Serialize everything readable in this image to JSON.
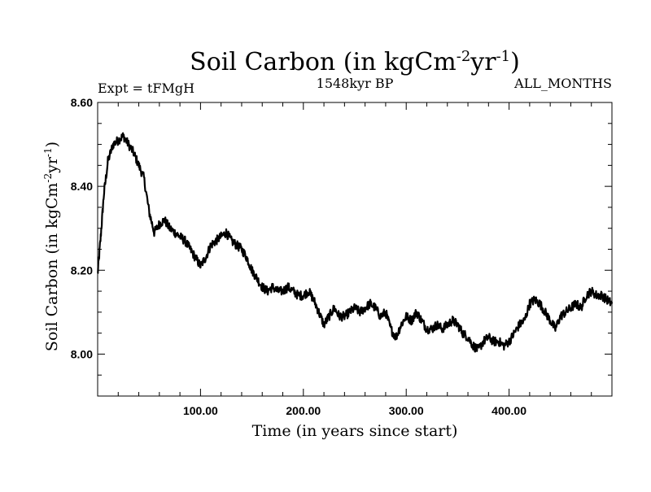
{
  "chart_data": {
    "type": "line",
    "title": {
      "base": "Soil Carbon (in kgCm",
      "sup1": "-2",
      "mid": "yr",
      "sup2": "-1",
      "end": ")"
    },
    "left_label": "Expt = tFMgH",
    "center_label": "1548kyr BP",
    "right_label": "ALL_MONTHS",
    "xlabel": "Time (in years since start)",
    "ylabel": {
      "base": "Soil Carbon (in kgCm",
      "sup1": "-2",
      "mid": "yr",
      "sup2": "-1",
      "end": ")"
    },
    "xlim": [
      0,
      500
    ],
    "ylim": [
      7.9,
      8.6
    ],
    "x_ticks": [
      100,
      200,
      300,
      400
    ],
    "x_tick_labels": [
      "100.00",
      "200.00",
      "300.00",
      "400.00"
    ],
    "y_ticks": [
      8.0,
      8.2,
      8.4,
      8.6
    ],
    "y_tick_labels": [
      "8.00",
      "8.20",
      "8.40",
      "8.60"
    ],
    "series": [
      {
        "name": "Soil Carbon",
        "color": "#000000",
        "x": [
          0,
          3,
          6,
          10,
          15,
          20,
          25,
          30,
          35,
          40,
          45,
          50,
          55,
          60,
          65,
          70,
          75,
          80,
          85,
          90,
          95,
          100,
          105,
          110,
          115,
          120,
          125,
          130,
          135,
          140,
          145,
          150,
          155,
          160,
          165,
          170,
          175,
          180,
          185,
          190,
          195,
          200,
          205,
          210,
          215,
          220,
          225,
          230,
          235,
          240,
          245,
          250,
          255,
          260,
          265,
          270,
          275,
          280,
          285,
          290,
          295,
          300,
          305,
          310,
          315,
          320,
          325,
          330,
          335,
          340,
          345,
          350,
          355,
          360,
          365,
          370,
          375,
          380,
          385,
          390,
          395,
          400,
          405,
          410,
          415,
          420,
          425,
          430,
          435,
          440,
          445,
          450,
          455,
          460,
          465,
          470,
          475,
          480,
          485,
          490,
          495,
          500
        ],
        "values": [
          8.19,
          8.28,
          8.38,
          8.46,
          8.5,
          8.51,
          8.52,
          8.5,
          8.48,
          8.45,
          8.42,
          8.34,
          8.29,
          8.31,
          8.32,
          8.3,
          8.29,
          8.28,
          8.27,
          8.25,
          8.23,
          8.21,
          8.23,
          8.26,
          8.27,
          8.28,
          8.29,
          8.27,
          8.26,
          8.25,
          8.23,
          8.2,
          8.18,
          8.16,
          8.15,
          8.16,
          8.15,
          8.15,
          8.16,
          8.15,
          8.14,
          8.14,
          8.15,
          8.13,
          8.1,
          8.07,
          8.09,
          8.11,
          8.09,
          8.09,
          8.1,
          8.11,
          8.1,
          8.11,
          8.12,
          8.11,
          8.09,
          8.1,
          8.06,
          8.04,
          8.07,
          8.09,
          8.08,
          8.1,
          8.08,
          8.06,
          8.06,
          8.07,
          8.06,
          8.07,
          8.08,
          8.07,
          8.05,
          8.04,
          8.02,
          8.01,
          8.03,
          8.04,
          8.03,
          8.03,
          8.02,
          8.03,
          8.05,
          8.07,
          8.08,
          8.12,
          8.13,
          8.12,
          8.1,
          8.08,
          8.06,
          8.09,
          8.1,
          8.11,
          8.12,
          8.11,
          8.14,
          8.15,
          8.14,
          8.14,
          8.13,
          8.12
        ]
      }
    ]
  }
}
